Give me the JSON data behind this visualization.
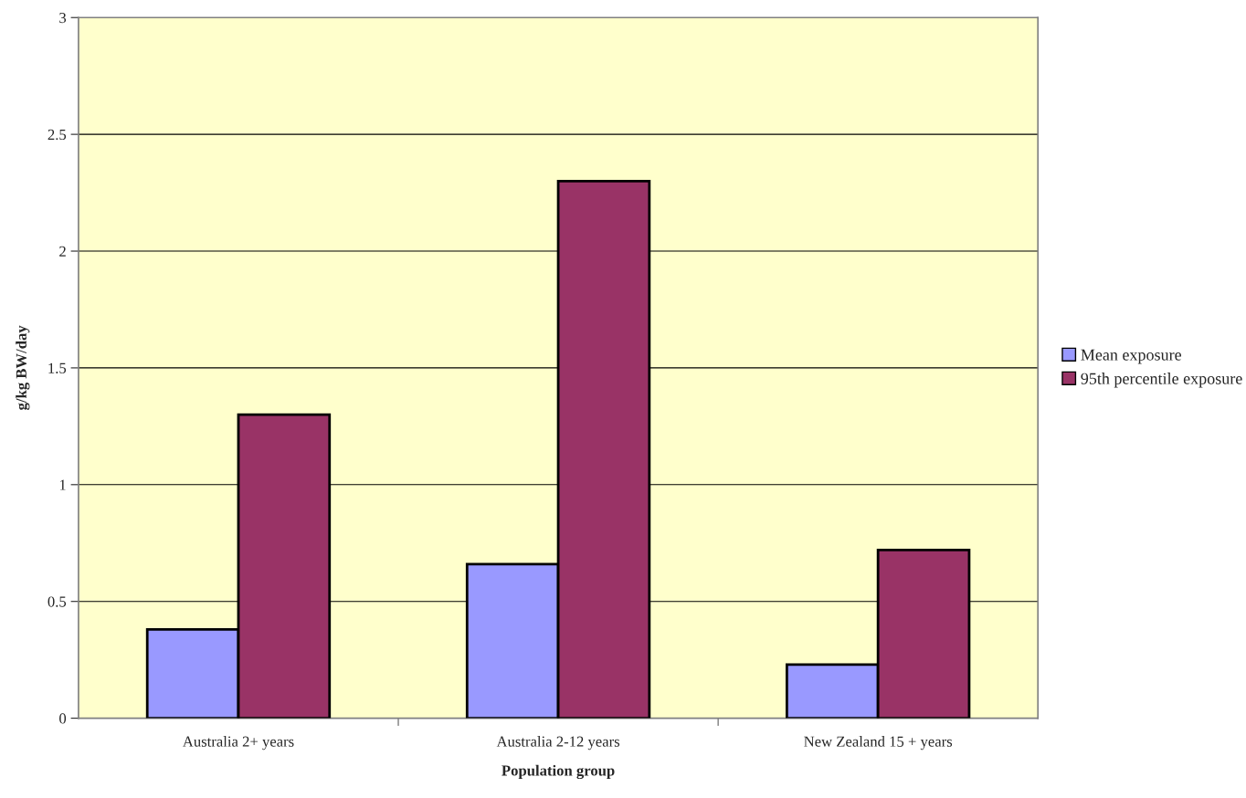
{
  "chart_data": {
    "type": "bar",
    "xlabel": "Population group",
    "ylabel": "g/kg BW/day",
    "categories": [
      "Australia 2+ years",
      "Australia 2-12 years",
      "New Zealand 15 + years"
    ],
    "series": [
      {
        "name": "Mean exposure",
        "color": "#9999ff",
        "values": [
          0.38,
          0.66,
          0.23
        ]
      },
      {
        "name": "95th percentile exposure",
        "color": "#993366",
        "values": [
          1.3,
          2.3,
          0.72
        ]
      }
    ],
    "ylim": [
      0,
      3
    ],
    "yticks": [
      0,
      0.5,
      1,
      1.5,
      2,
      2.5,
      3
    ],
    "grid": "y",
    "legend": "right"
  }
}
